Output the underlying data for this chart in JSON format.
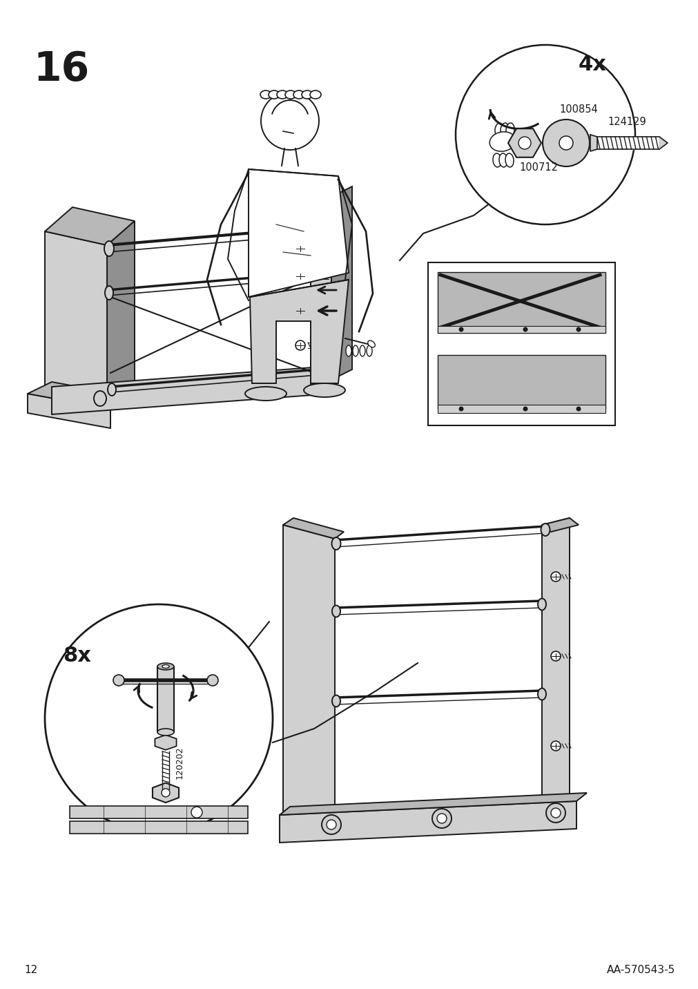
{
  "page_number": "12",
  "step_number": "16",
  "doc_id": "AA-570543-5",
  "background_color": "#ffffff",
  "line_color": "#1a1a1a",
  "gray_fill": "#b8b8b8",
  "light_gray": "#d0d0d0",
  "dark_gray": "#909090",
  "part_numbers": [
    "100854",
    "124129",
    "100712"
  ],
  "quantity_top": "4x",
  "quantity_bottom": "8x",
  "screw_part": "120202",
  "title_fontsize": 42,
  "label_fontsize": 10.5,
  "qty_fontsize": 20,
  "page_fontsize": 11
}
